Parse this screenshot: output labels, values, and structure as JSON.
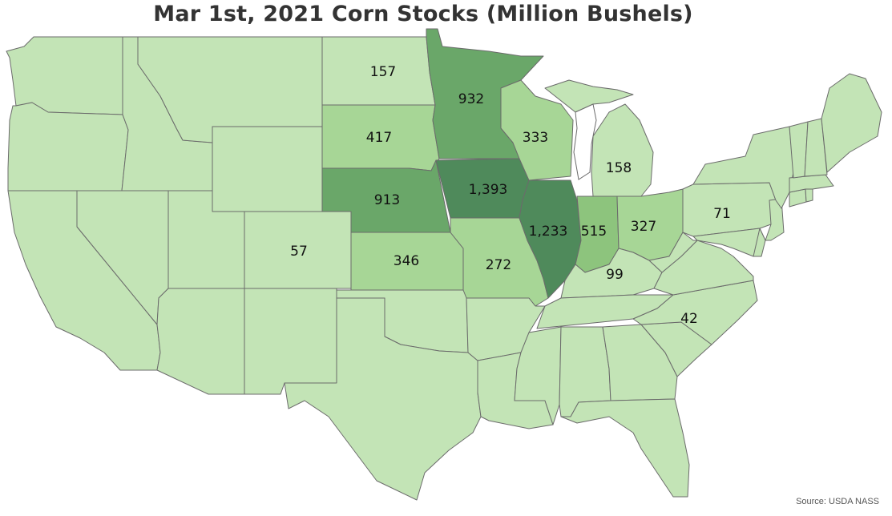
{
  "title": "Mar 1st, 2021 Corn Stocks (Million Bushels)",
  "source": "Source: USDA NASS",
  "colors": {
    "base": "#c3e4b6",
    "low": "#a7d696",
    "mid": "#8dc47d",
    "high": "#6aa769",
    "top": "#4f8a5b",
    "border": "#6b6b6b"
  },
  "chart_data": {
    "type": "choropleth",
    "unit": "Million Bushels",
    "regions": [
      {
        "state": "North Dakota",
        "value": 157,
        "label": "157"
      },
      {
        "state": "Minnesota",
        "value": 932,
        "label": "932"
      },
      {
        "state": "South Dakota",
        "value": 417,
        "label": "417"
      },
      {
        "state": "Wisconsin",
        "value": 333,
        "label": "333"
      },
      {
        "state": "Michigan",
        "value": 158,
        "label": "158"
      },
      {
        "state": "Nebraska",
        "value": 913,
        "label": "913"
      },
      {
        "state": "Iowa",
        "value": 1393,
        "label": "1,393"
      },
      {
        "state": "Illinois",
        "value": 1233,
        "label": "1,233"
      },
      {
        "state": "Indiana",
        "value": 515,
        "label": "515"
      },
      {
        "state": "Ohio",
        "value": 327,
        "label": "327"
      },
      {
        "state": "Pennsylvania",
        "value": 71,
        "label": "71"
      },
      {
        "state": "Colorado",
        "value": 57,
        "label": "57"
      },
      {
        "state": "Kansas",
        "value": 346,
        "label": "346"
      },
      {
        "state": "Missouri",
        "value": 272,
        "label": "272"
      },
      {
        "state": "Kentucky",
        "value": 99,
        "label": "99"
      },
      {
        "state": "North Carolina",
        "value": 42,
        "label": "42"
      }
    ]
  }
}
